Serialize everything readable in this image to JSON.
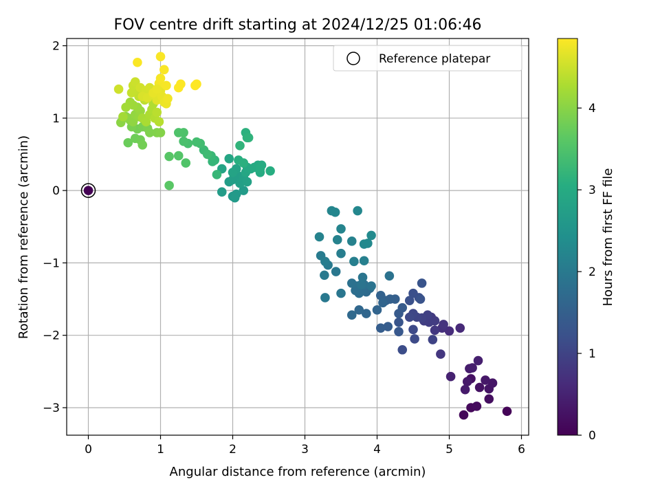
{
  "chart_data": {
    "type": "scatter",
    "title": "FOV centre drift starting at 2024/12/25 01:06:46",
    "xlabel": "Angular distance from reference (arcmin)",
    "ylabel": "Rotation from reference (arcmin)",
    "xlim": [
      -0.3,
      6.1
    ],
    "ylim": [
      -3.38,
      2.1
    ],
    "xticks": [
      0,
      1,
      2,
      3,
      4,
      5,
      6
    ],
    "yticks": [
      -3,
      -2,
      -1,
      0,
      1,
      2
    ],
    "grid": true,
    "legend": {
      "placement": "top-right",
      "entries": [
        "Reference platepar"
      ]
    },
    "reference_point": {
      "x": 0,
      "y": 0,
      "hours": 0
    },
    "colorbar": {
      "label": "Hours from first FF file",
      "colormap": "viridis",
      "min": 0,
      "max": 4.85,
      "ticks": [
        0,
        1,
        2,
        3,
        4
      ]
    },
    "points": [
      [
        5.8,
        -3.05,
        0.05
      ],
      [
        5.2,
        -3.1,
        0.1
      ],
      [
        5.3,
        -3.0,
        0.12
      ],
      [
        5.38,
        -2.98,
        0.15
      ],
      [
        5.55,
        -2.88,
        0.2
      ],
      [
        5.3,
        -2.6,
        0.22
      ],
      [
        5.42,
        -2.72,
        0.25
      ],
      [
        5.55,
        -2.74,
        0.28
      ],
      [
        5.6,
        -2.66,
        0.3
      ],
      [
        5.5,
        -2.62,
        0.33
      ],
      [
        5.25,
        -2.64,
        0.35
      ],
      [
        5.22,
        -2.75,
        0.38
      ],
      [
        5.28,
        -2.46,
        0.4
      ],
      [
        5.32,
        -2.45,
        0.42
      ],
      [
        5.4,
        -2.35,
        0.45
      ],
      [
        5.02,
        -2.57,
        0.48
      ],
      [
        5.15,
        -1.9,
        0.6
      ],
      [
        5.0,
        -1.94,
        0.65
      ],
      [
        4.9,
        -1.9,
        0.7
      ],
      [
        4.92,
        -1.85,
        0.75
      ],
      [
        4.88,
        -2.26,
        0.8
      ],
      [
        4.8,
        -1.93,
        0.82
      ],
      [
        4.75,
        -1.75,
        0.85
      ],
      [
        4.8,
        -1.8,
        0.88
      ],
      [
        4.72,
        -1.82,
        0.9
      ],
      [
        4.65,
        -1.8,
        0.92
      ],
      [
        4.7,
        -1.72,
        0.95
      ],
      [
        4.62,
        -1.76,
        0.98
      ],
      [
        4.77,
        -2.06,
        1.0
      ],
      [
        4.55,
        -1.75,
        1.02
      ],
      [
        4.5,
        -1.7,
        1.05
      ],
      [
        4.45,
        -1.75,
        1.08
      ],
      [
        4.5,
        -1.92,
        1.1
      ],
      [
        4.52,
        -2.05,
        1.12
      ],
      [
        4.35,
        -2.2,
        1.15
      ],
      [
        4.58,
        -1.48,
        1.18
      ],
      [
        4.5,
        -1.42,
        1.2
      ],
      [
        4.45,
        -1.52,
        1.22
      ],
      [
        4.6,
        -1.5,
        1.25
      ],
      [
        4.62,
        -1.28,
        1.28
      ],
      [
        4.3,
        -1.82,
        1.3
      ],
      [
        4.3,
        -1.95,
        1.35
      ],
      [
        4.3,
        -1.7,
        1.38
      ],
      [
        4.35,
        -1.62,
        1.4
      ],
      [
        4.15,
        -1.88,
        1.42
      ],
      [
        4.05,
        -1.9,
        1.45
      ],
      [
        4.25,
        -1.5,
        1.48
      ],
      [
        4.18,
        -1.5,
        1.5
      ],
      [
        4.12,
        -1.52,
        1.52
      ],
      [
        4.05,
        -1.45,
        1.55
      ],
      [
        4.0,
        -1.65,
        1.58
      ],
      [
        4.08,
        -1.55,
        1.6
      ],
      [
        3.85,
        -1.7,
        1.62
      ],
      [
        3.75,
        -1.65,
        1.65
      ],
      [
        3.65,
        -1.72,
        1.68
      ],
      [
        3.85,
        -1.4,
        1.7
      ],
      [
        3.9,
        -1.35,
        1.72
      ],
      [
        3.8,
        -1.38,
        1.74
      ],
      [
        3.75,
        -1.42,
        1.76
      ],
      [
        3.7,
        -1.38,
        1.78
      ],
      [
        3.72,
        -1.32,
        1.8
      ],
      [
        3.82,
        -1.3,
        1.82
      ],
      [
        3.65,
        -1.28,
        1.84
      ],
      [
        4.17,
        -1.18,
        1.86
      ],
      [
        3.92,
        -1.32,
        1.88
      ],
      [
        3.78,
        -1.3,
        1.9
      ],
      [
        3.8,
        -1.2,
        1.92
      ],
      [
        3.5,
        -1.42,
        1.94
      ],
      [
        3.43,
        -1.12,
        1.96
      ],
      [
        3.28,
        -1.48,
        1.98
      ],
      [
        3.27,
        -1.17,
        2.0
      ],
      [
        3.32,
        -1.03,
        2.02
      ],
      [
        3.22,
        -0.9,
        2.04
      ],
      [
        3.28,
        -0.98,
        2.06
      ],
      [
        3.5,
        -0.87,
        2.08
      ],
      [
        3.68,
        -0.98,
        2.1
      ],
      [
        3.82,
        -0.97,
        2.12
      ],
      [
        3.65,
        -0.7,
        2.14
      ],
      [
        3.45,
        -0.68,
        2.16
      ],
      [
        3.2,
        -0.64,
        2.18
      ],
      [
        3.5,
        -0.53,
        2.2
      ],
      [
        3.37,
        -0.28,
        2.22
      ],
      [
        3.42,
        -0.3,
        2.24
      ],
      [
        3.73,
        -0.28,
        2.26
      ],
      [
        3.82,
        -0.74,
        2.28
      ],
      [
        3.87,
        -0.73,
        2.3
      ],
      [
        3.92,
        -0.62,
        2.32
      ],
      [
        2.0,
        -0.08,
        2.6
      ],
      [
        2.05,
        -0.05,
        2.62
      ],
      [
        2.03,
        -0.1,
        2.64
      ],
      [
        2.15,
        0.0,
        2.66
      ],
      [
        1.85,
        -0.02,
        2.68
      ],
      [
        1.95,
        0.12,
        2.7
      ],
      [
        2.0,
        0.15,
        2.72
      ],
      [
        2.08,
        0.2,
        2.74
      ],
      [
        2.1,
        0.1,
        2.76
      ],
      [
        2.15,
        0.18,
        2.78
      ],
      [
        2.2,
        0.12,
        2.8
      ],
      [
        2.05,
        0.3,
        2.82
      ],
      [
        2.0,
        0.25,
        2.84
      ],
      [
        1.85,
        0.3,
        2.86
      ],
      [
        1.95,
        0.44,
        2.88
      ],
      [
        2.18,
        0.25,
        2.9
      ],
      [
        2.2,
        0.32,
        2.92
      ],
      [
        2.25,
        0.3,
        2.94
      ],
      [
        2.35,
        0.35,
        2.96
      ],
      [
        2.3,
        0.32,
        2.98
      ],
      [
        2.38,
        0.25,
        3.0
      ],
      [
        2.4,
        0.35,
        3.02
      ],
      [
        2.38,
        0.3,
        3.04
      ],
      [
        2.52,
        0.27,
        3.06
      ],
      [
        2.08,
        0.42,
        3.08
      ],
      [
        2.15,
        0.38,
        3.1
      ],
      [
        2.18,
        0.8,
        3.12
      ],
      [
        2.2,
        0.73,
        3.14
      ],
      [
        2.22,
        0.73,
        3.16
      ],
      [
        2.1,
        0.62,
        3.18
      ],
      [
        1.75,
        0.42,
        3.2
      ],
      [
        1.72,
        0.4,
        3.22
      ],
      [
        1.78,
        0.22,
        3.24
      ],
      [
        1.7,
        0.48,
        3.26
      ],
      [
        1.6,
        0.56,
        3.3
      ],
      [
        1.65,
        0.5,
        3.33
      ],
      [
        1.55,
        0.65,
        3.36
      ],
      [
        1.5,
        0.67,
        3.39
      ],
      [
        1.38,
        0.65,
        3.42
      ],
      [
        1.32,
        0.68,
        3.45
      ],
      [
        1.32,
        0.8,
        3.48
      ],
      [
        1.25,
        0.8,
        3.5
      ],
      [
        1.35,
        0.38,
        3.52
      ],
      [
        1.25,
        0.48,
        3.55
      ],
      [
        1.12,
        0.47,
        3.58
      ],
      [
        1.12,
        0.07,
        3.6
      ],
      [
        0.55,
        0.66,
        3.75
      ],
      [
        0.65,
        0.72,
        3.78
      ],
      [
        0.72,
        0.7,
        3.8
      ],
      [
        0.75,
        0.63,
        3.82
      ],
      [
        0.68,
        0.85,
        3.84
      ],
      [
        0.75,
        0.88,
        3.86
      ],
      [
        0.6,
        0.88,
        3.88
      ],
      [
        0.82,
        0.86,
        3.9
      ],
      [
        0.85,
        0.8,
        3.92
      ],
      [
        0.95,
        0.8,
        3.94
      ],
      [
        1.0,
        0.8,
        3.96
      ],
      [
        0.58,
        0.97,
        3.98
      ],
      [
        0.52,
        1.02,
        4.0
      ],
      [
        0.45,
        0.94,
        4.02
      ],
      [
        0.55,
        1.0,
        4.04
      ],
      [
        0.62,
        0.95,
        4.06
      ],
      [
        0.65,
        1.05,
        4.08
      ],
      [
        0.7,
        1.02,
        4.1
      ],
      [
        0.72,
        1.1,
        4.12
      ],
      [
        0.68,
        1.15,
        4.14
      ],
      [
        0.62,
        1.18,
        4.16
      ],
      [
        0.58,
        1.22,
        4.18
      ],
      [
        0.52,
        1.15,
        4.2
      ],
      [
        0.48,
        1.02,
        4.22
      ],
      [
        0.75,
        1.0,
        4.24
      ],
      [
        0.8,
        0.95,
        4.26
      ],
      [
        0.85,
        1.05,
        4.28
      ],
      [
        0.88,
        1.12,
        4.3
      ],
      [
        0.9,
        1.2,
        4.32
      ],
      [
        0.92,
        1.0,
        4.34
      ],
      [
        0.98,
        0.95,
        4.36
      ],
      [
        0.95,
        1.08,
        4.38
      ],
      [
        0.78,
        1.25,
        4.4
      ],
      [
        0.7,
        1.3,
        4.42
      ],
      [
        0.65,
        1.38,
        4.44
      ],
      [
        0.6,
        1.35,
        4.46
      ],
      [
        0.62,
        1.45,
        4.48
      ],
      [
        0.65,
        1.5,
        4.5
      ],
      [
        0.42,
        1.4,
        4.52
      ],
      [
        0.72,
        1.42,
        4.54
      ],
      [
        0.8,
        1.38,
        4.56
      ],
      [
        0.85,
        1.42,
        4.58
      ],
      [
        0.75,
        1.3,
        4.6
      ],
      [
        0.82,
        1.28,
        4.62
      ],
      [
        0.9,
        1.32,
        4.64
      ],
      [
        0.95,
        1.25,
        4.66
      ],
      [
        1.0,
        1.38,
        4.68
      ],
      [
        1.02,
        1.3,
        4.7
      ],
      [
        1.05,
        1.22,
        4.72
      ],
      [
        1.08,
        1.2,
        4.74
      ],
      [
        1.1,
        1.27,
        4.76
      ],
      [
        0.98,
        1.48,
        4.78
      ],
      [
        1.0,
        1.55,
        4.8
      ],
      [
        1.08,
        1.45,
        4.8
      ],
      [
        1.05,
        1.67,
        4.82
      ],
      [
        1.0,
        1.85,
        4.82
      ],
      [
        0.68,
        1.77,
        4.83
      ],
      [
        1.25,
        1.42,
        4.84
      ],
      [
        1.28,
        1.47,
        4.84
      ],
      [
        1.48,
        1.45,
        4.85
      ],
      [
        1.5,
        1.47,
        4.85
      ],
      [
        0.9,
        1.35,
        4.7
      ],
      [
        0.95,
        1.4,
        4.72
      ]
    ]
  }
}
